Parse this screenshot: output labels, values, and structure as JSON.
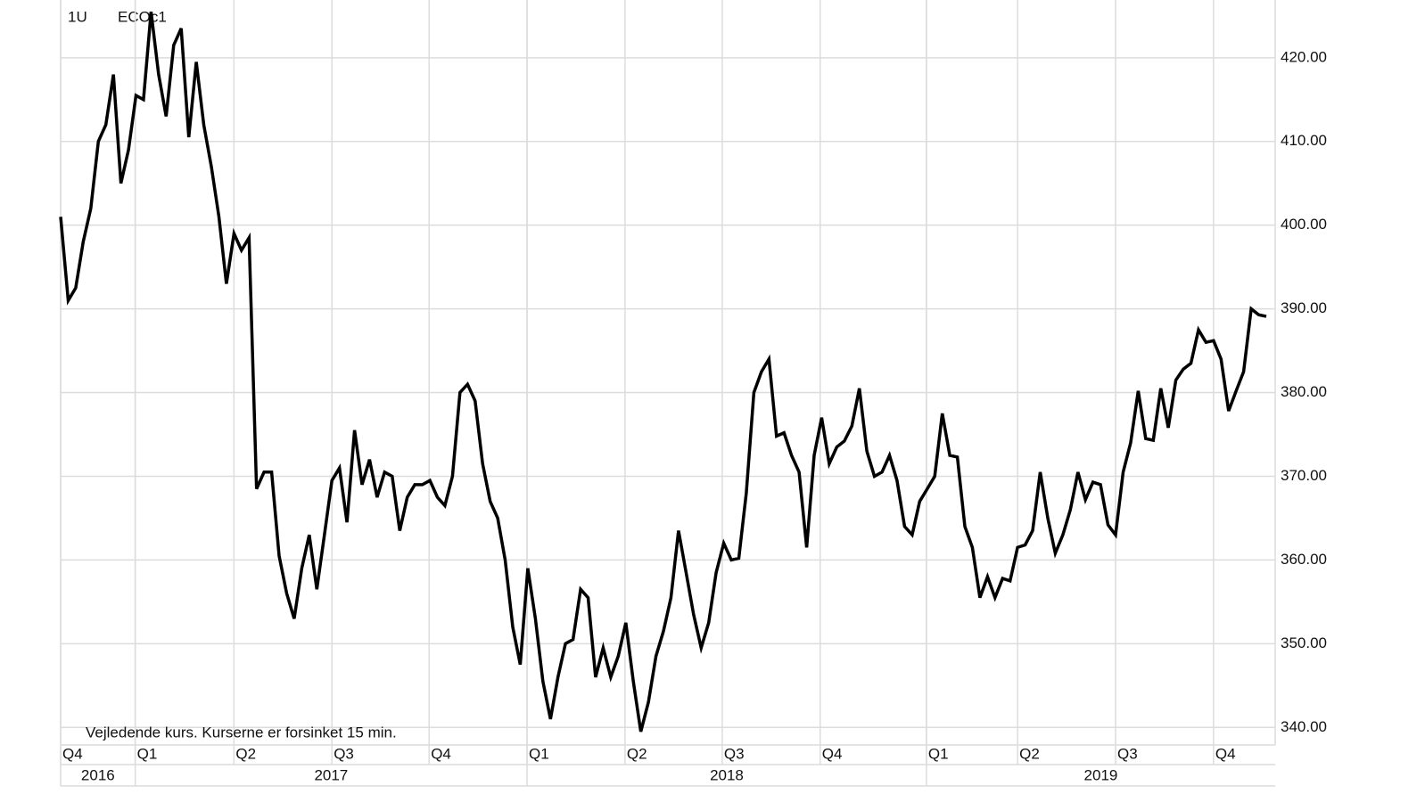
{
  "chart_data": {
    "type": "line",
    "interval": "1U",
    "title": "ECOc1",
    "note": "Vejledende kurs. Kurserne er forsinket 15 min.",
    "xlim": [
      0,
      160
    ],
    "xticks": [
      {
        "value": 0,
        "label": "Q4"
      },
      {
        "value": 9.9,
        "label": "Q1"
      },
      {
        "value": 23.0,
        "label": "Q2"
      },
      {
        "value": 36.0,
        "label": "Q3"
      },
      {
        "value": 48.9,
        "label": "Q4"
      },
      {
        "value": 61.9,
        "label": "Q1"
      },
      {
        "value": 74.9,
        "label": "Q2"
      },
      {
        "value": 87.8,
        "label": "Q3"
      },
      {
        "value": 100.8,
        "label": "Q4"
      },
      {
        "value": 114.9,
        "label": "Q1"
      },
      {
        "value": 127.0,
        "label": "Q2"
      },
      {
        "value": 140.0,
        "label": "Q3"
      },
      {
        "value": 153.0,
        "label": "Q4"
      }
    ],
    "year_ticks": [
      {
        "value": 0,
        "label": "2016"
      },
      {
        "value": 9.9,
        "label": "2017"
      },
      {
        "value": 61.9,
        "label": "2018"
      },
      {
        "value": 114.9,
        "label": "2019"
      }
    ],
    "ylim": [
      337.9,
      426.9
    ],
    "yticks": [
      {
        "value": 340,
        "label": "340.00"
      },
      {
        "value": 350,
        "label": "350.00"
      },
      {
        "value": 360,
        "label": "360.00"
      },
      {
        "value": 370,
        "label": "370.00"
      },
      {
        "value": 380,
        "label": "380.00"
      },
      {
        "value": 390,
        "label": "390.00"
      },
      {
        "value": 400,
        "label": "400.00"
      },
      {
        "value": 410,
        "label": "410.00"
      },
      {
        "value": 420,
        "label": "420.00"
      }
    ],
    "grid": true,
    "color": "#000000",
    "values": [
      401,
      391,
      392.5,
      398,
      402,
      410,
      412,
      418,
      405,
      409,
      415.5,
      415,
      425.5,
      418,
      413,
      421.5,
      423.5,
      410.5,
      419.5,
      412,
      407,
      401,
      393,
      399,
      397,
      398.5,
      368.5,
      370.5,
      370.5,
      360.5,
      356,
      353,
      359,
      363,
      356.5,
      363,
      369.5,
      371,
      364.5,
      375.5,
      369,
      372,
      367.5,
      370.5,
      370,
      363.5,
      367.5,
      369,
      369,
      369.5,
      367.5,
      366.5,
      370,
      380,
      381,
      379,
      371.5,
      367,
      365,
      360,
      352,
      347.5,
      359,
      353,
      345.5,
      341,
      346,
      350,
      350.5,
      356.5,
      355.5,
      346,
      349.5,
      346,
      348.5,
      352.5,
      345.5,
      339.5,
      343,
      348.5,
      351.5,
      355.5,
      363.5,
      358.5,
      353.5,
      349.5,
      352.5,
      358.5,
      362,
      360,
      360.2,
      368,
      380,
      382.5,
      384,
      374.8,
      375.2,
      372.5,
      370.5,
      361.5,
      372.5,
      377,
      371.5,
      373.5,
      374.2,
      376,
      380.5,
      373,
      370,
      370.5,
      372.5,
      369.5,
      364,
      363,
      367,
      368.5,
      370,
      377.5,
      372.5,
      372.3,
      364,
      361.5,
      355.5,
      358,
      355.5,
      357.8,
      357.5,
      361.5,
      361.8,
      363.5,
      370.5,
      365,
      360.8,
      363,
      366,
      370.5,
      367.2,
      369.3,
      369,
      364.2,
      363,
      370.5,
      374,
      380.2,
      374.5,
      374.3,
      380.5,
      375.8,
      381.5,
      382.8,
      383.5,
      387.5,
      386,
      386.2,
      384,
      377.8,
      380.2,
      382.5,
      390,
      389.3,
      389.1
    ]
  }
}
